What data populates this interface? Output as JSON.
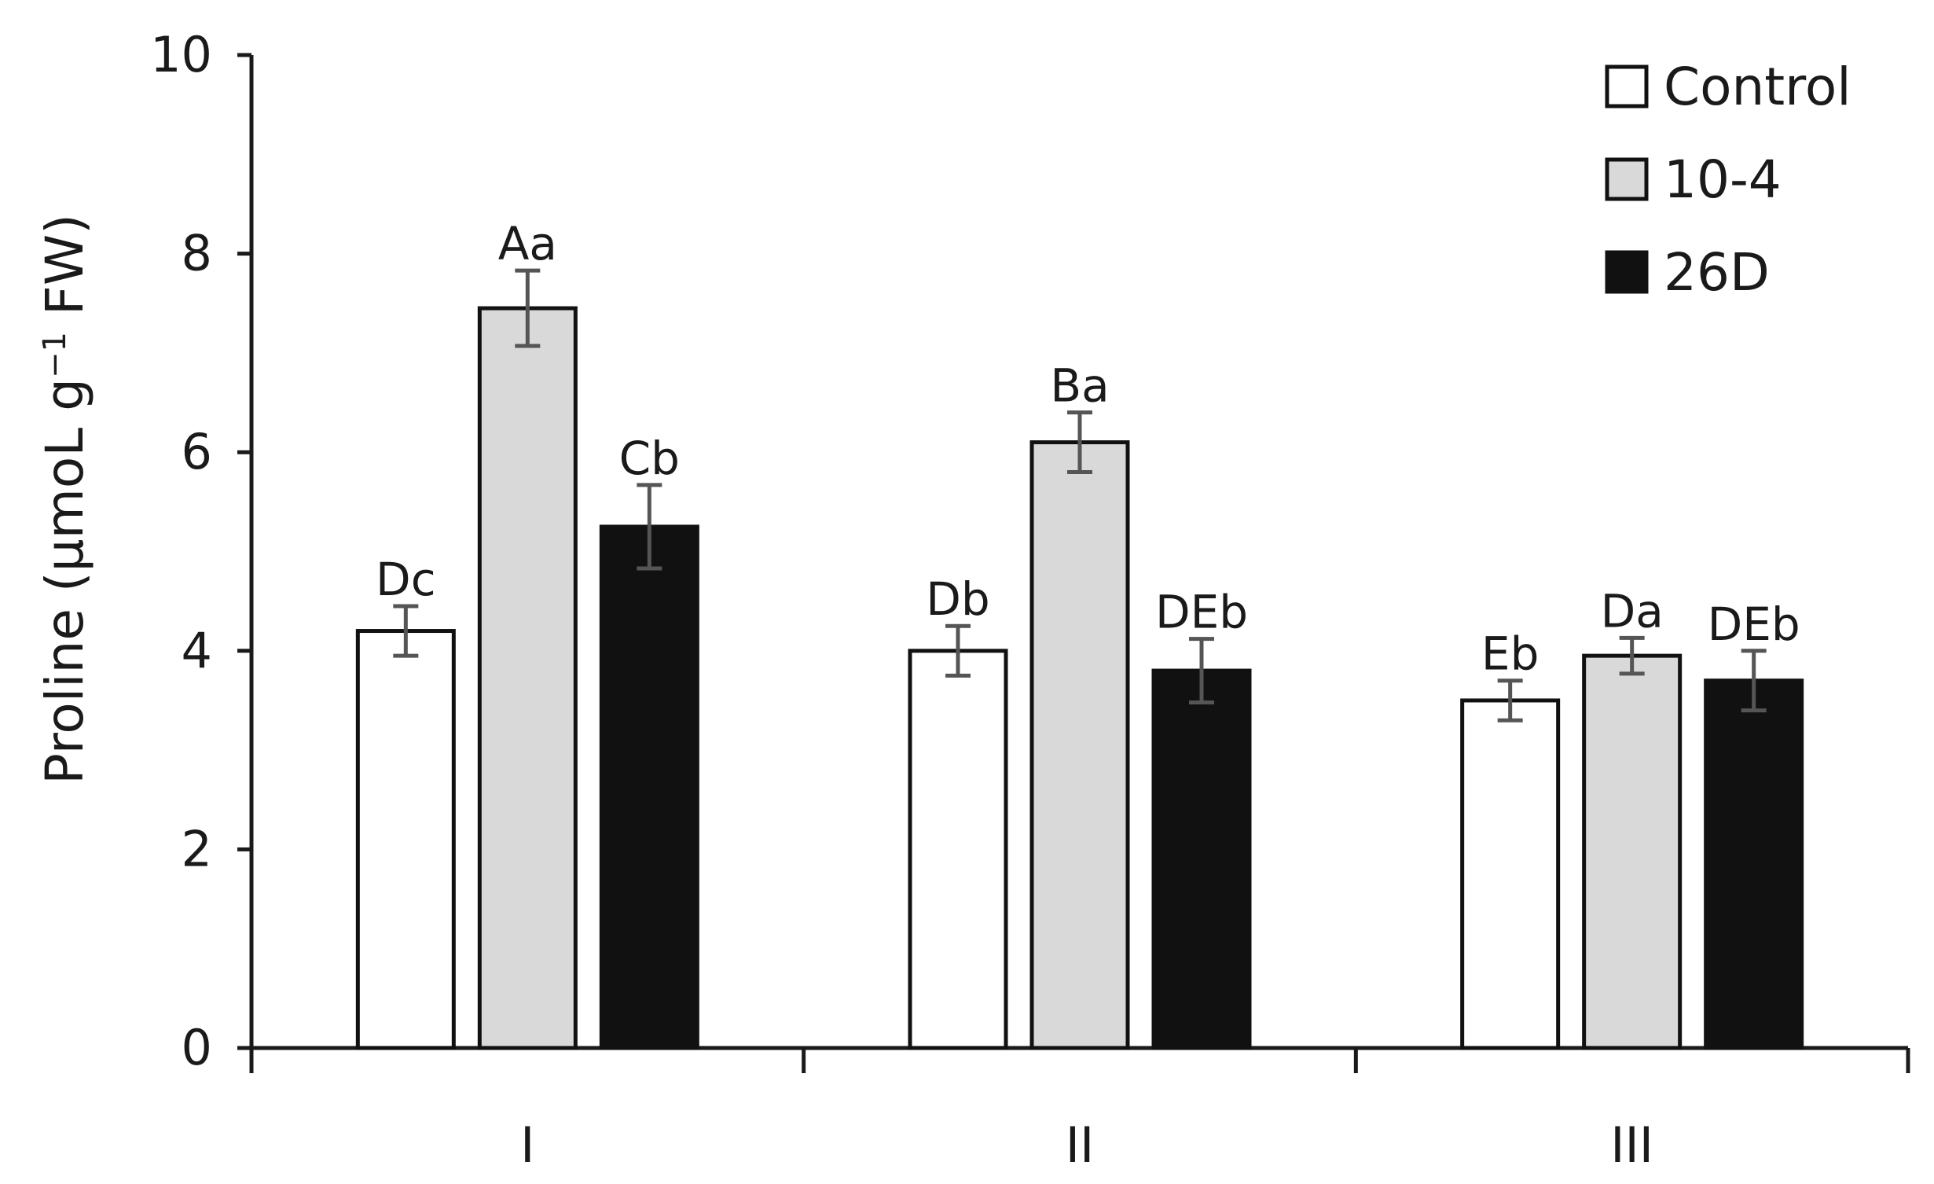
{
  "chart_data": {
    "type": "bar",
    "title": "",
    "xlabel": "",
    "ylabel": "Proline (μmoL g",
    "ylabel_superscript": "−1",
    "ylabel_suffix": " FW)",
    "ylim": [
      0,
      10
    ],
    "yticks": [
      0,
      2,
      4,
      6,
      8,
      10
    ],
    "categories": [
      "I",
      "II",
      "III"
    ],
    "legend_position": "top-right",
    "series": [
      {
        "name": "Control",
        "color": "#ffffff",
        "values": [
          4.2,
          4.0,
          3.5
        ],
        "errors": [
          0.25,
          0.25,
          0.2
        ],
        "labels": [
          "Dc",
          "Db",
          "Eb"
        ]
      },
      {
        "name": "10-4",
        "color": "#d9d9d9",
        "values": [
          7.45,
          6.1,
          3.95
        ],
        "errors": [
          0.38,
          0.3,
          0.18
        ],
        "labels": [
          "Aa",
          "Ba",
          "Da"
        ]
      },
      {
        "name": "26D",
        "color": "#111111",
        "values": [
          5.25,
          3.8,
          3.7
        ],
        "errors": [
          0.42,
          0.32,
          0.3
        ],
        "labels": [
          "Cb",
          "DEb",
          "DEb"
        ]
      }
    ]
  }
}
